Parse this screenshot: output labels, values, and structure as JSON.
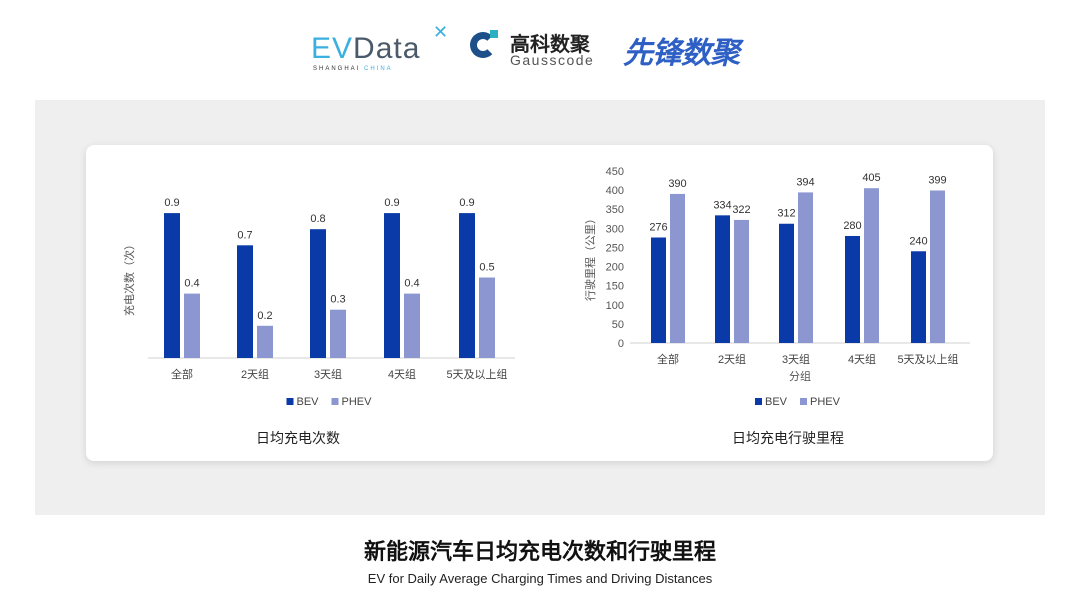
{
  "logos": {
    "evdata": {
      "ev": "EV",
      "rest": "Data",
      "sub_a": "SHANGHAI",
      "sub_b": "CHINA"
    },
    "gausscode": {
      "cn": "高科数聚",
      "en": "Gausscode"
    },
    "xianfeng": "先锋数聚"
  },
  "colors": {
    "bev": "#0a3aa8",
    "phev": "#8c97d2",
    "background_panel": "#efefef"
  },
  "chart_data": [
    {
      "type": "bar",
      "title": "日均充电次数",
      "xlabel": "",
      "ylabel": "充电次数（次）",
      "categories": [
        "全部",
        "2天组",
        "3天组",
        "4天组",
        "5天及以上组"
      ],
      "series": [
        {
          "name": "BEV",
          "values": [
            0.9,
            0.7,
            0.8,
            0.9,
            0.9
          ]
        },
        {
          "name": "PHEV",
          "values": [
            0.4,
            0.2,
            0.3,
            0.4,
            0.5
          ]
        }
      ],
      "ylim": [
        0,
        1.0
      ],
      "y_ticks_shown": false,
      "grid": false,
      "legend": "bottom"
    },
    {
      "type": "bar",
      "title": "日均充电行驶里程",
      "xlabel": "分组",
      "ylabel": "行驶里程（公里）",
      "categories": [
        "全部",
        "2天组",
        "3天组",
        "4天组",
        "5天及以上组"
      ],
      "series": [
        {
          "name": "BEV",
          "values": [
            276,
            334,
            312,
            280,
            240
          ]
        },
        {
          "name": "PHEV",
          "values": [
            390,
            322,
            394,
            405,
            399
          ]
        }
      ],
      "ylim": [
        0,
        450
      ],
      "y_ticks": [
        "0",
        "50",
        "100",
        "150",
        "200",
        "250",
        "300",
        "350",
        "400",
        "450"
      ],
      "grid": false,
      "legend": "bottom"
    }
  ],
  "footer": {
    "title": "新能源汽车日均充电次数和行驶里程",
    "subtitle": "EV for Daily Average Charging Times and Driving Distances"
  }
}
